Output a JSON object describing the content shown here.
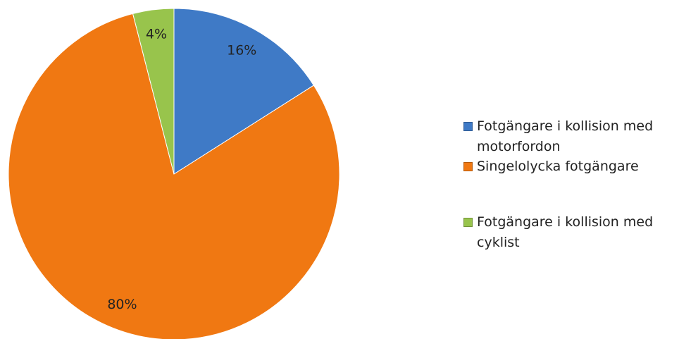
{
  "chart_data": {
    "type": "pie",
    "categories": [
      "Fotgängare i kollision med motorfordon",
      "Singelolycka fotgängare",
      "Fotgängare i kollision med cyklist"
    ],
    "values": [
      16,
      80,
      4
    ],
    "value_labels": [
      "16%",
      "80%",
      "4%"
    ],
    "colors": [
      "#3f7ac6",
      "#f07812",
      "#98c44c"
    ]
  }
}
